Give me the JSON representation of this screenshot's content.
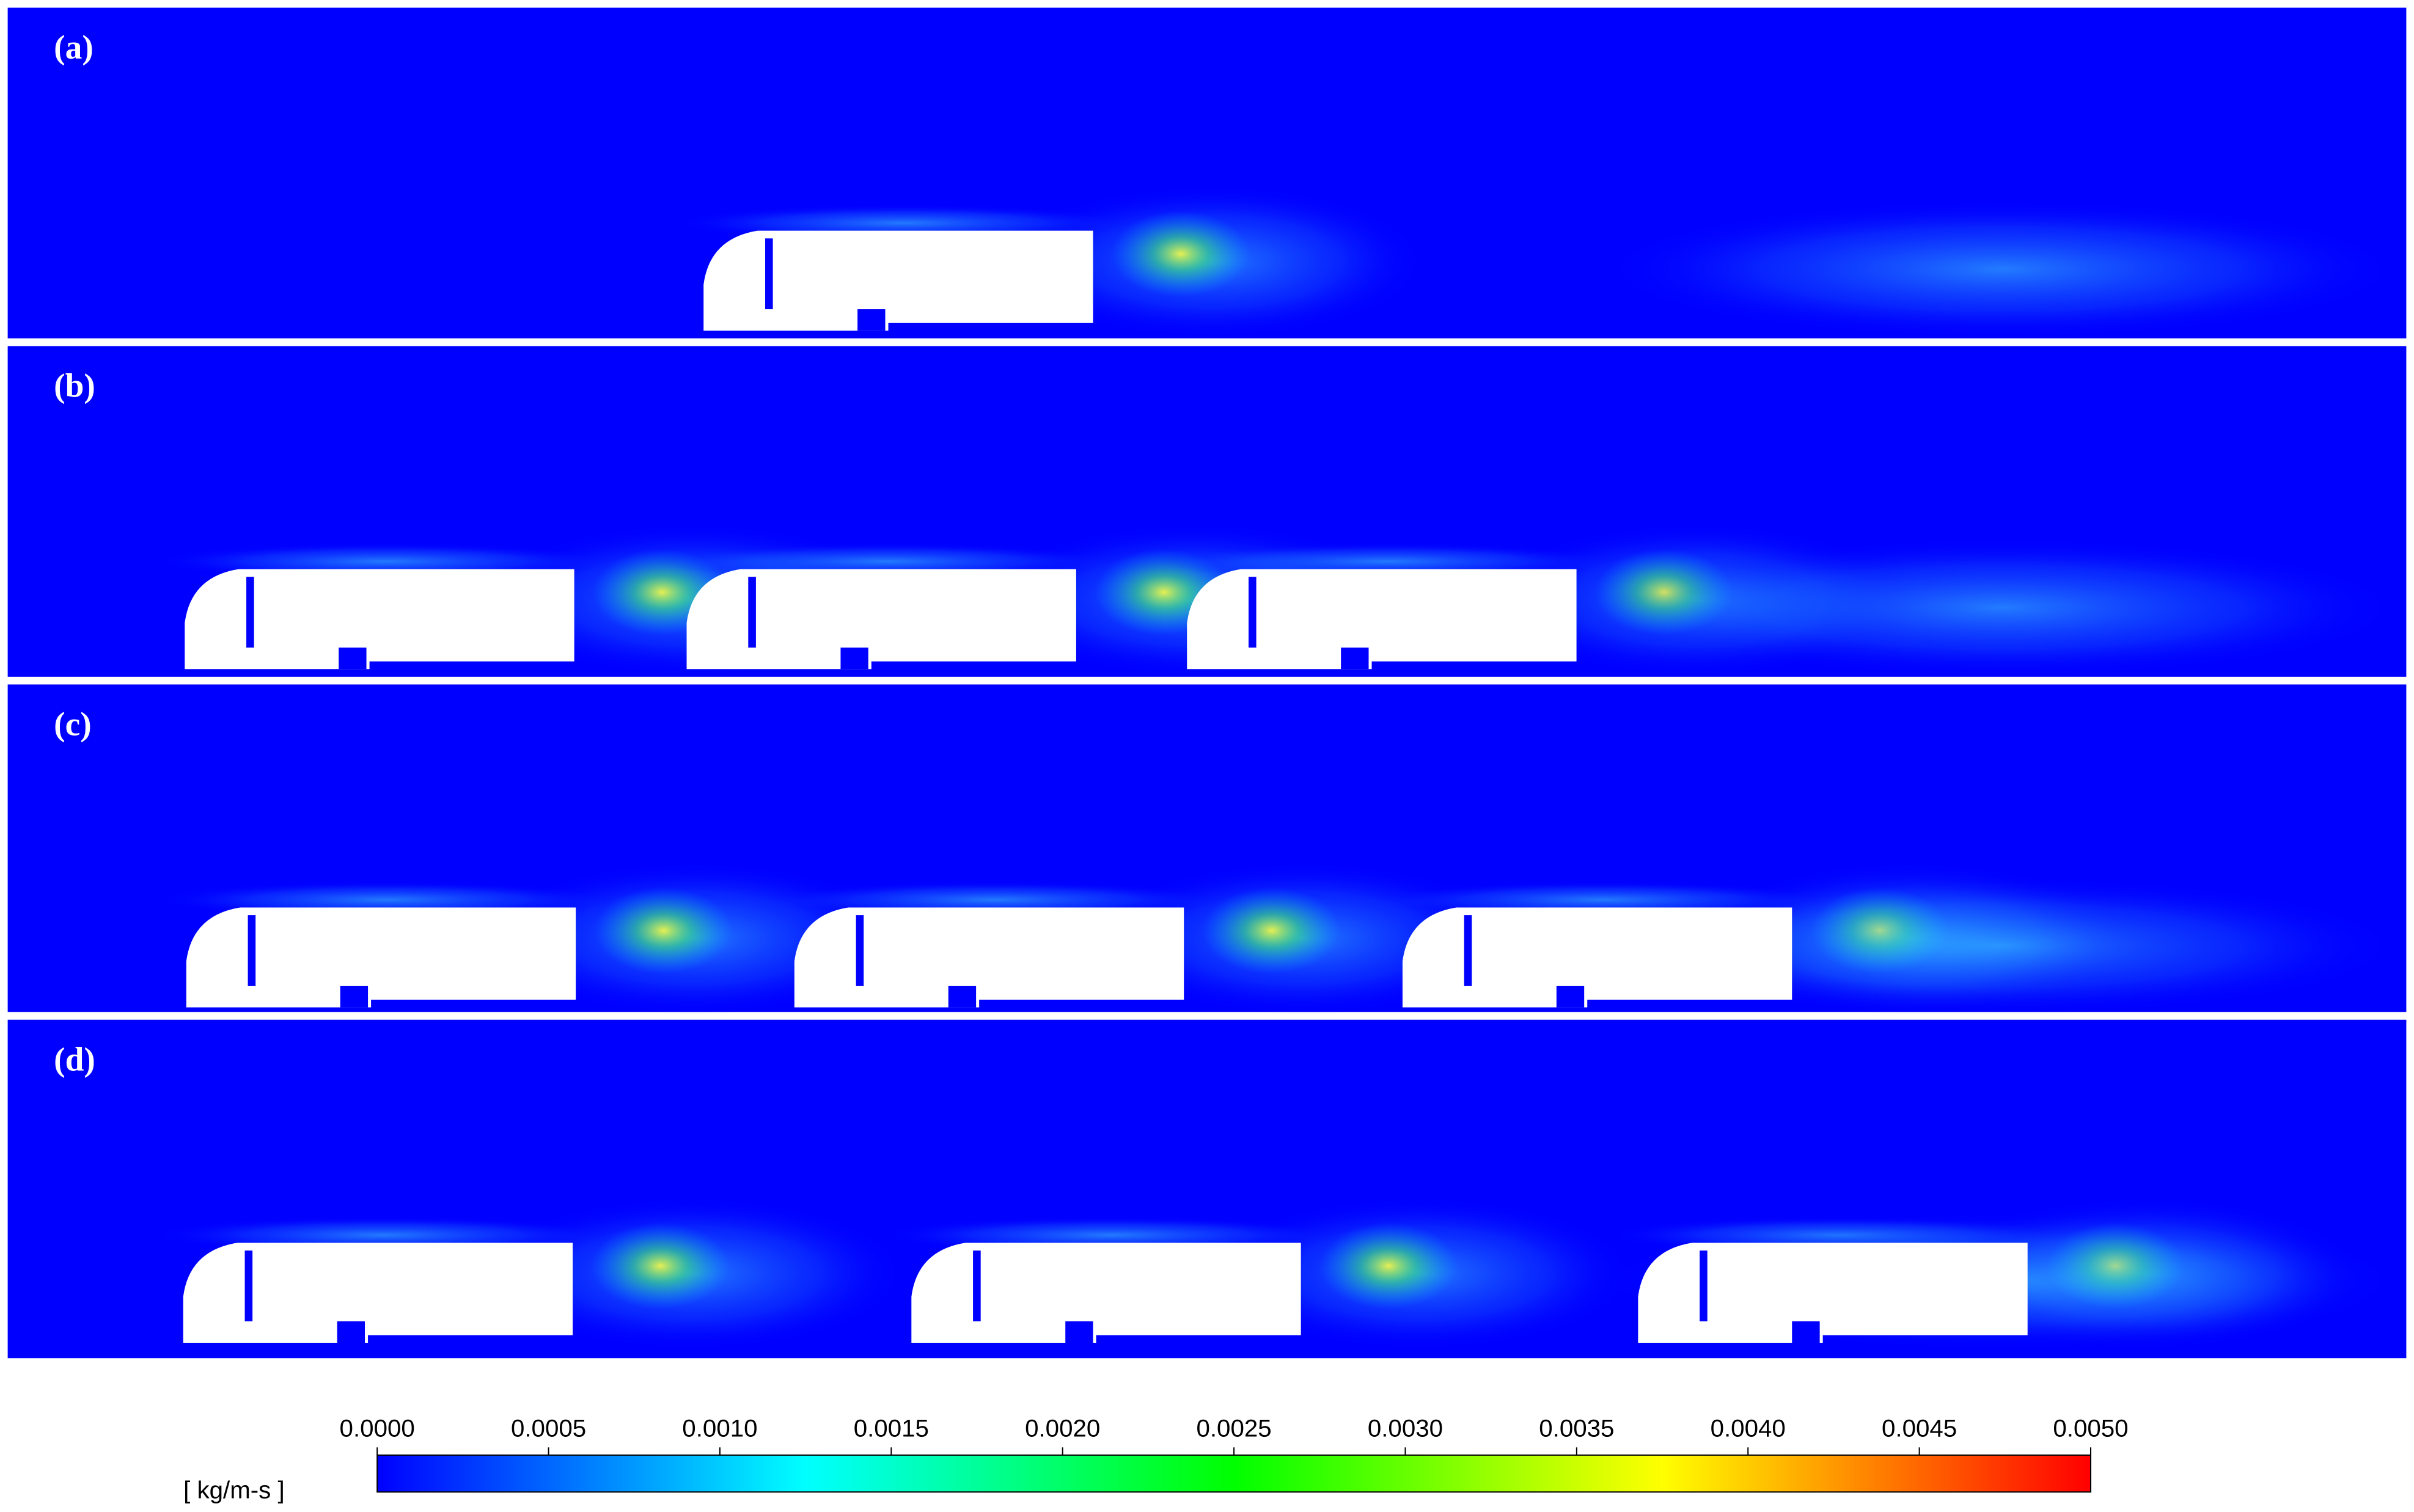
{
  "chart_data": {
    "type": "contour",
    "panels": [
      "(a)",
      "(b)",
      "(c)",
      "(d)"
    ],
    "colorbar": {
      "unit": "[ kg/m-s ]",
      "lim": [
        0,
        0.005
      ],
      "ticks": [
        {
          "value": 0,
          "label": "0.0000"
        },
        {
          "value": 0.0005,
          "label": "0.0005"
        },
        {
          "value": 0.001,
          "label": "0.0010"
        },
        {
          "value": 0.0015,
          "label": "0.0015"
        },
        {
          "value": 0.002,
          "label": "0.0020"
        },
        {
          "value": 0.0025,
          "label": "0.0025"
        },
        {
          "value": 0.003,
          "label": "0.0030"
        },
        {
          "value": 0.0035,
          "label": "0.0035"
        },
        {
          "value": 0.004,
          "label": "0.0040"
        },
        {
          "value": 0.0045,
          "label": "0.0045"
        },
        {
          "value": 0.005,
          "label": "0.0050"
        }
      ],
      "colormap": [
        "#0000ff",
        "#00ffff",
        "#00ff00",
        "#ffff00",
        "#ff0000"
      ]
    }
  }
}
